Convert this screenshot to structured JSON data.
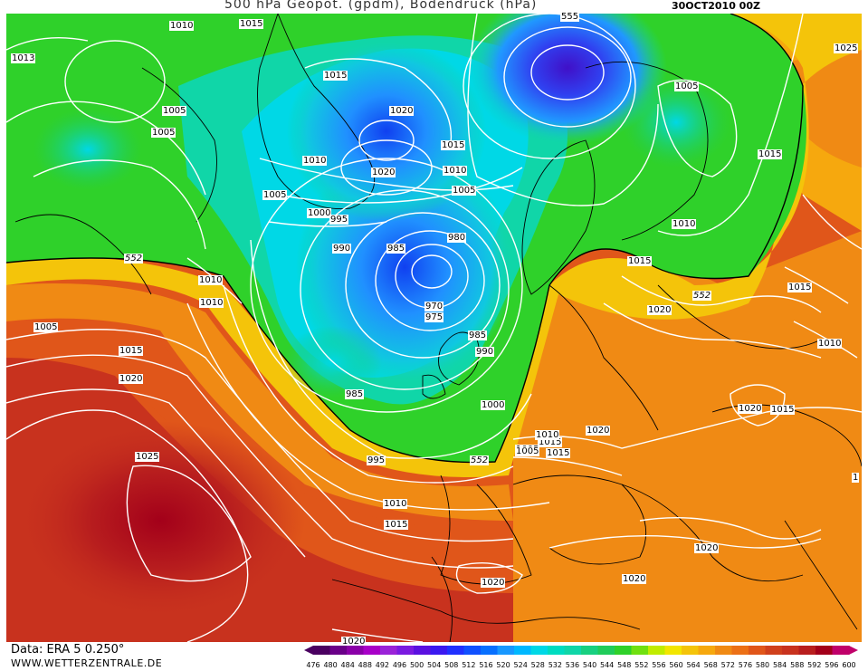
{
  "header": {
    "title": "500 hPa Geopot. (gpdm), Bodendruck (hPa)",
    "datetime": "30OCT2010 00Z"
  },
  "footer": {
    "data_source": "Data: ERA 5 0.250°",
    "website": "WWW.WETTERZENTRALE.DE"
  },
  "colors": {
    "deep_red": "#a3001a",
    "red": "#c8321e",
    "orange_red": "#e0561a",
    "orange": "#f08a14",
    "light_orange": "#f6a80e",
    "yellow_orange": "#f4c40a",
    "yellow": "#f2e600",
    "green": "#2fd12a",
    "teal": "#10d6a8",
    "cyan": "#00d8e6",
    "light_blue": "#2aa0ff",
    "blue": "#1050ff",
    "violet": "#5014d8",
    "contour": "#ffffff",
    "coast": "#000000"
  },
  "map_labels": {
    "isobars": [
      {
        "text": "1010"
      },
      {
        "text": "1013"
      },
      {
        "text": "1015"
      },
      {
        "text": "1005"
      },
      {
        "text": "1005"
      },
      {
        "text": "1015"
      },
      {
        "text": "1020"
      },
      {
        "text": "1015"
      },
      {
        "text": "1010"
      },
      {
        "text": "1020"
      },
      {
        "text": "1010"
      },
      {
        "text": "1005"
      },
      {
        "text": "1005"
      },
      {
        "text": "1000"
      },
      {
        "text": "995"
      },
      {
        "text": "990"
      },
      {
        "text": "985"
      },
      {
        "text": "980"
      },
      {
        "text": "970"
      },
      {
        "text": "975"
      },
      {
        "text": "985"
      },
      {
        "text": "990"
      },
      {
        "text": "985"
      },
      {
        "text": "1000"
      },
      {
        "text": "995"
      },
      {
        "text": "1010"
      },
      {
        "text": "1010"
      },
      {
        "text": "1005"
      },
      {
        "text": "1015"
      },
      {
        "text": "1020"
      },
      {
        "text": "1025"
      },
      {
        "text": "1010"
      },
      {
        "text": "1015"
      },
      {
        "text": "1005"
      },
      {
        "text": "1015"
      },
      {
        "text": "1025"
      },
      {
        "text": "1005"
      },
      {
        "text": "1015"
      },
      {
        "text": "1010"
      },
      {
        "text": "1015"
      },
      {
        "text": "1020"
      },
      {
        "text": "1015"
      },
      {
        "text": "1010"
      },
      {
        "text": "1020"
      },
      {
        "text": "1015"
      },
      {
        "text": "1010"
      },
      {
        "text": "1005"
      },
      {
        "text": "1015"
      },
      {
        "text": "1020"
      },
      {
        "text": "1020"
      },
      {
        "text": "1020"
      },
      {
        "text": "1020"
      },
      {
        "text": "1020"
      },
      {
        "text": "1"
      },
      {
        "text": "555"
      }
    ],
    "geopot_552": [
      "552",
      "552",
      "552"
    ]
  },
  "colorbar": {
    "ticks": [
      "476",
      "480",
      "484",
      "488",
      "492",
      "496",
      "500",
      "504",
      "508",
      "512",
      "516",
      "520",
      "524",
      "528",
      "532",
      "536",
      "540",
      "544",
      "548",
      "552",
      "556",
      "560",
      "564",
      "568",
      "572",
      "576",
      "580",
      "584",
      "588",
      "592",
      "596",
      "600"
    ],
    "colors": [
      "#4a0060",
      "#6a0088",
      "#8a00a8",
      "#a800c8",
      "#9a22d8",
      "#7a1ae0",
      "#5a10e0",
      "#3a18f0",
      "#2030ff",
      "#1050ff",
      "#0870ff",
      "#1898ff",
      "#00b8ff",
      "#00d8e6",
      "#00dcc0",
      "#10d6a8",
      "#18d080",
      "#20cc5a",
      "#2fd12a",
      "#70e010",
      "#c0ec00",
      "#f2e600",
      "#f4c40a",
      "#f6a80e",
      "#f08a14",
      "#ec7016",
      "#e0561a",
      "#d0401c",
      "#c8321e",
      "#b81e1e",
      "#a3001a",
      "#c0006a"
    ]
  }
}
